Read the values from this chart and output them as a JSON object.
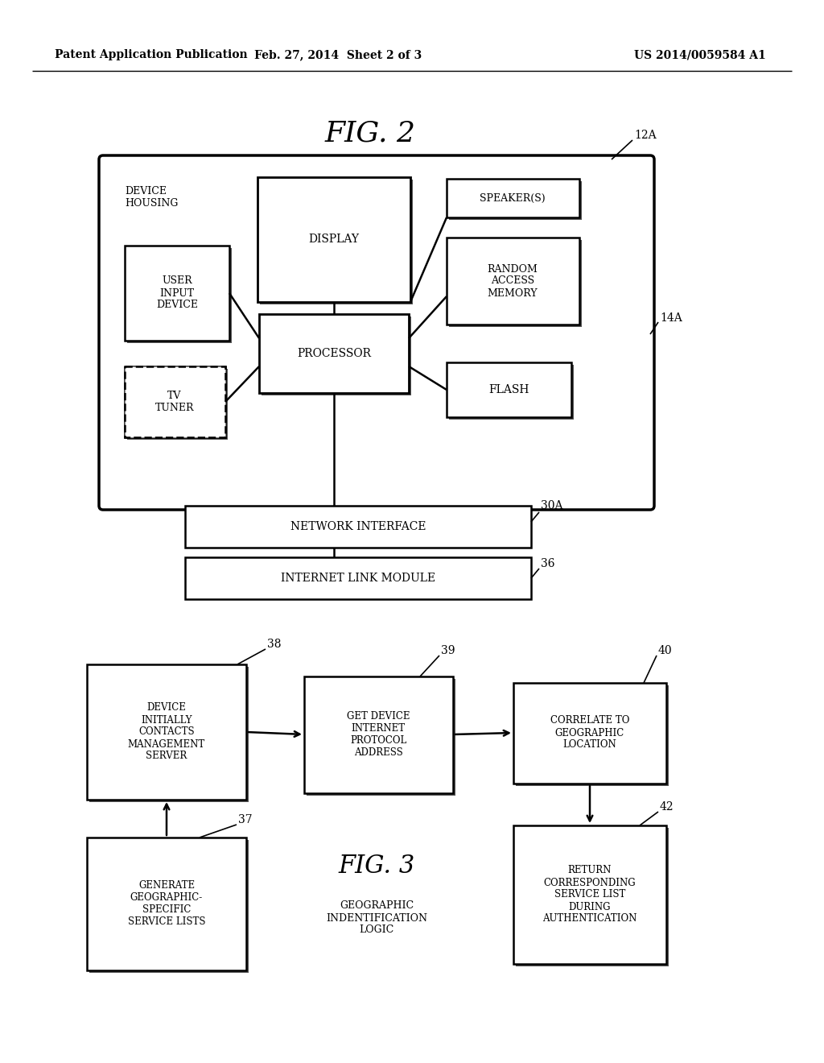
{
  "bg_color": "#ffffff",
  "header_left": "Patent Application Publication",
  "header_mid": "Feb. 27, 2014  Sheet 2 of 3",
  "header_right": "US 2014/0059584 A1",
  "fig2_title": "FIG. 2",
  "fig3_title": "FIG. 3",
  "fig3_subtitle": "GEOGRAPHIC\nINDENTIFICATION\nLOGIC",
  "label_12A": "12A",
  "label_14A": "14A",
  "label_30A": "30A",
  "label_36": "36",
  "label_37": "37",
  "label_38": "38",
  "label_39": "39",
  "label_40": "40",
  "label_42": "42",
  "text_device_housing": "DEVICE\nHOUSING",
  "text_display": "DISPLAY",
  "text_speaker": "SPEAKER(S)",
  "text_uid": "USER\nINPUT\nDEVICE",
  "text_processor": "PROCESSOR",
  "text_ram": "RANDOM\nACCESS\nMEMORY",
  "text_tvtuner": "TV\nTUNER",
  "text_flash": "FLASH",
  "text_netinterface": "NETWORK INTERFACE",
  "text_internetlink": "INTERNET LINK MODULE",
  "text_38": "DEVICE\nINITIALLY\nCONTACTS\nMANAGEMENT\nSERVER",
  "text_39": "GET DEVICE\nINTERNET\nPROTOCOL\nADDRESS",
  "text_40": "CORRELATE TO\nGEOGRAPHIC\nLOCATION",
  "text_37": "GENERATE\nGEOGRAPHIC-\nSPECIFIC\nSERVICE LISTS",
  "text_42": "RETURN\nCORRESPONDING\nSERVICE LIST\nDURING\nAUTHENTICATION"
}
